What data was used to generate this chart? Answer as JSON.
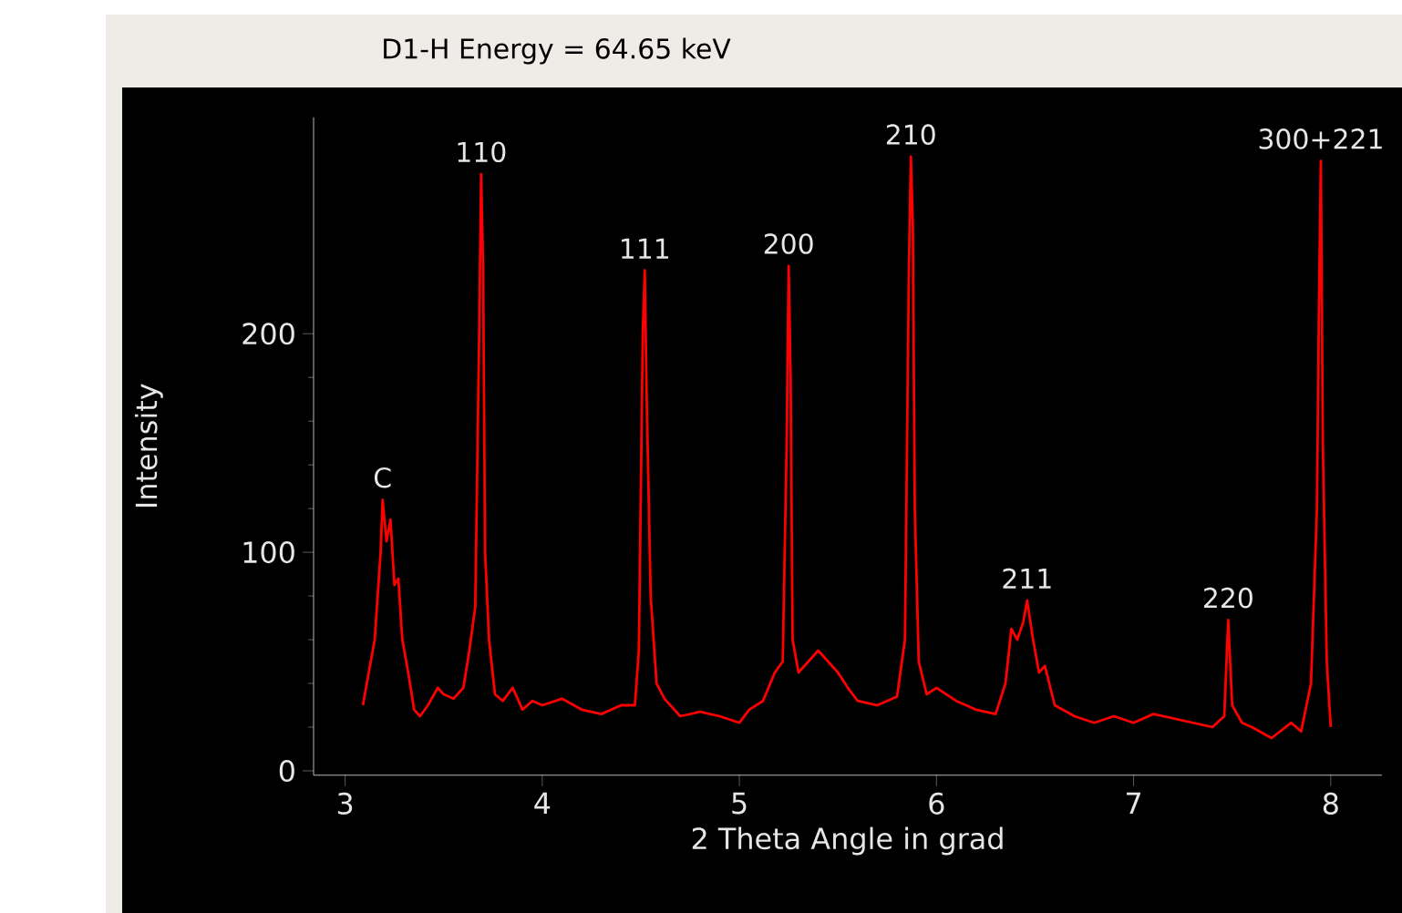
{
  "chart_data": {
    "type": "line",
    "title": "D1-H Energy = 64.65 keV",
    "xlabel": "2 Theta Angle in grad",
    "ylabel": "Intensity",
    "xlim": [
      2.84,
      8.26
    ],
    "ylim": [
      -2,
      299
    ],
    "xticks": [
      3,
      4,
      5,
      6,
      7,
      8
    ],
    "yticks": [
      0,
      100,
      200
    ],
    "marker": "none",
    "x": [
      3.09,
      3.12,
      3.15,
      3.18,
      3.19,
      3.21,
      3.23,
      3.25,
      3.27,
      3.29,
      3.32,
      3.35,
      3.38,
      3.42,
      3.47,
      3.5,
      3.55,
      3.6,
      3.63,
      3.66,
      3.68,
      3.69,
      3.7,
      3.71,
      3.73,
      3.76,
      3.8,
      3.85,
      3.9,
      3.95,
      4.0,
      4.1,
      4.2,
      4.3,
      4.4,
      4.47,
      4.49,
      4.51,
      4.52,
      4.53,
      4.55,
      4.58,
      4.62,
      4.7,
      4.8,
      4.9,
      5.0,
      5.05,
      5.12,
      5.18,
      5.22,
      5.24,
      5.25,
      5.26,
      5.27,
      5.3,
      5.35,
      5.4,
      5.45,
      5.5,
      5.55,
      5.6,
      5.7,
      5.8,
      5.84,
      5.86,
      5.87,
      5.88,
      5.89,
      5.91,
      5.95,
      6.0,
      6.1,
      6.2,
      6.3,
      6.35,
      6.38,
      6.41,
      6.44,
      6.46,
      6.49,
      6.52,
      6.55,
      6.6,
      6.7,
      6.8,
      6.9,
      7.0,
      7.1,
      7.2,
      7.3,
      7.4,
      7.46,
      7.48,
      7.5,
      7.55,
      7.6,
      7.7,
      7.8,
      7.85,
      7.9,
      7.93,
      7.94,
      7.95,
      7.96,
      7.98,
      8.0
    ],
    "series": [
      {
        "color": "#ff0000",
        "values": [
          30,
          45,
          60,
          100,
          124,
          105,
          115,
          85,
          88,
          60,
          45,
          28,
          25,
          30,
          38,
          35,
          33,
          38,
          55,
          75,
          200,
          273,
          230,
          100,
          60,
          35,
          32,
          38,
          28,
          32,
          30,
          33,
          28,
          26,
          30,
          30,
          55,
          200,
          229,
          170,
          80,
          40,
          33,
          25,
          27,
          25,
          22,
          28,
          32,
          45,
          50,
          150,
          231,
          180,
          60,
          45,
          50,
          55,
          50,
          45,
          38,
          32,
          30,
          34,
          60,
          230,
          281,
          250,
          120,
          50,
          35,
          38,
          32,
          28,
          26,
          40,
          65,
          60,
          68,
          78,
          60,
          45,
          48,
          30,
          25,
          22,
          25,
          22,
          26,
          24,
          22,
          20,
          25,
          69,
          30,
          22,
          20,
          15,
          22,
          18,
          40,
          120,
          210,
          279,
          150,
          50,
          20
        ]
      }
    ],
    "annotations": [
      {
        "text": "C",
        "x": 3.19,
        "y": 124
      },
      {
        "text": "110",
        "x": 3.69,
        "y": 273
      },
      {
        "text": "111",
        "x": 4.52,
        "y": 229
      },
      {
        "text": "200",
        "x": 5.25,
        "y": 231
      },
      {
        "text": "210",
        "x": 5.87,
        "y": 281
      },
      {
        "text": "211",
        "x": 6.46,
        "y": 78
      },
      {
        "text": "220",
        "x": 7.48,
        "y": 69
      },
      {
        "text": "300+221",
        "x": 7.95,
        "y": 279
      }
    ]
  }
}
